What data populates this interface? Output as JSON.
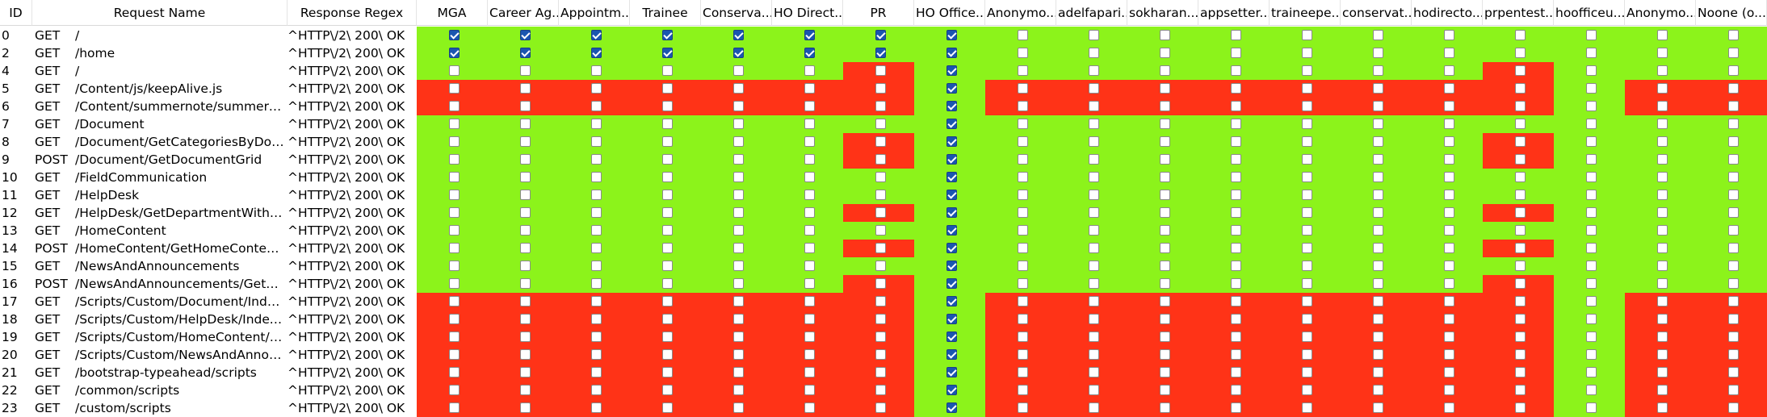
{
  "columns": {
    "id": "ID",
    "request_name": "Request Name",
    "response_regex": "Response Regex",
    "roles": [
      "MGA",
      "Career Ag...",
      "Appointm...",
      "Trainee",
      "Conserva...",
      "HO Direct...",
      "PR",
      "HO Office...",
      "Anonymo...",
      "adelfapari...",
      "sokharan...",
      "appsetter...",
      "traineepe...",
      "conservat...",
      "hodirecto...",
      "prpentest...",
      "hoofficeu...",
      "Anonymo...",
      "Noone (o..."
    ]
  },
  "colors": {
    "allowed": "#8cf31b",
    "denied": "#ff3317",
    "checkbox_checked": "#1a56b0"
  },
  "rows": [
    {
      "id": "0",
      "method": "GET",
      "url": "/",
      "regex": "^HTTP\\/2\\ 200\\ OK",
      "checked": [
        1,
        1,
        1,
        1,
        1,
        1,
        1,
        1,
        0,
        0,
        0,
        0,
        0,
        0,
        0,
        0,
        0,
        0,
        0
      ],
      "cells": "GGGGGGGGGGGGGGGGGGG"
    },
    {
      "id": "2",
      "method": "GET",
      "url": "/home",
      "regex": "^HTTP\\/2\\ 200\\ OK",
      "checked": [
        1,
        1,
        1,
        1,
        1,
        1,
        1,
        1,
        0,
        0,
        0,
        0,
        0,
        0,
        0,
        0,
        0,
        0,
        0
      ],
      "cells": "GGGGGGGGGGGGGGGGGGG"
    },
    {
      "id": "4",
      "method": "GET",
      "url": "/",
      "regex": "^HTTP\\/2\\ 200\\ OK",
      "checked": [
        0,
        0,
        0,
        0,
        0,
        0,
        0,
        1,
        0,
        0,
        0,
        0,
        0,
        0,
        0,
        0,
        0,
        0,
        0
      ],
      "cells": "GGGGGGRGGGGGGGGRGGG"
    },
    {
      "id": "5",
      "method": "GET",
      "url": "/Content/js/keepAlive.js",
      "regex": "^HTTP\\/2\\ 200\\ OK",
      "checked": [
        0,
        0,
        0,
        0,
        0,
        0,
        0,
        1,
        0,
        0,
        0,
        0,
        0,
        0,
        0,
        0,
        0,
        0,
        0
      ],
      "cells": "RRRRRRRGRRRRRRRRGRR"
    },
    {
      "id": "6",
      "method": "GET",
      "url": "/Content/summernote/summernote.css",
      "regex": "^HTTP\\/2\\ 200\\ OK",
      "checked": [
        0,
        0,
        0,
        0,
        0,
        0,
        0,
        1,
        0,
        0,
        0,
        0,
        0,
        0,
        0,
        0,
        0,
        0,
        0
      ],
      "cells": "RRRRRRRGRRRRRRRRGRR"
    },
    {
      "id": "7",
      "method": "GET",
      "url": "/Document",
      "regex": "^HTTP\\/2\\ 200\\ OK",
      "checked": [
        0,
        0,
        0,
        0,
        0,
        0,
        0,
        1,
        0,
        0,
        0,
        0,
        0,
        0,
        0,
        0,
        0,
        0,
        0
      ],
      "cells": "GGGGGGGGGGGGGGGGGGG"
    },
    {
      "id": "8",
      "method": "GET",
      "url": "/Document/GetCategoriesByDocumentType",
      "regex": "^HTTP\\/2\\ 200\\ OK",
      "checked": [
        0,
        0,
        0,
        0,
        0,
        0,
        0,
        1,
        0,
        0,
        0,
        0,
        0,
        0,
        0,
        0,
        0,
        0,
        0
      ],
      "cells": "GGGGGGRGGGGGGGGRGGG"
    },
    {
      "id": "9",
      "method": "POST",
      "url": " /Document/GetDocumentGrid",
      "regex": "^HTTP\\/2\\ 200\\ OK",
      "checked": [
        0,
        0,
        0,
        0,
        0,
        0,
        0,
        1,
        0,
        0,
        0,
        0,
        0,
        0,
        0,
        0,
        0,
        0,
        0
      ],
      "cells": "GGGGGGRGGGGGGGGRGGG"
    },
    {
      "id": "10",
      "method": "GET",
      "url": "/FieldCommunication",
      "regex": "^HTTP\\/2\\ 200\\ OK",
      "checked": [
        0,
        0,
        0,
        0,
        0,
        0,
        0,
        1,
        0,
        0,
        0,
        0,
        0,
        0,
        0,
        0,
        0,
        0,
        0
      ],
      "cells": "GGGGGGGGGGGGGGGGGGG"
    },
    {
      "id": "11",
      "method": "GET",
      "url": "/HelpDesk",
      "regex": "^HTTP\\/2\\ 200\\ OK",
      "checked": [
        0,
        0,
        0,
        0,
        0,
        0,
        0,
        1,
        0,
        0,
        0,
        0,
        0,
        0,
        0,
        0,
        0,
        0,
        0
      ],
      "cells": "GGGGGGGGGGGGGGGGGGG"
    },
    {
      "id": "12",
      "method": "GET",
      "url": "/HelpDesk/GetDepartmentWithPersonnel",
      "regex": "^HTTP\\/2\\ 200\\ OK",
      "checked": [
        0,
        0,
        0,
        0,
        0,
        0,
        0,
        1,
        0,
        0,
        0,
        0,
        0,
        0,
        0,
        0,
        0,
        0,
        0
      ],
      "cells": "GGGGGGRGGGGGGGGRGGG"
    },
    {
      "id": "13",
      "method": "GET",
      "url": "/HomeContent",
      "regex": "^HTTP\\/2\\ 200\\ OK",
      "checked": [
        0,
        0,
        0,
        0,
        0,
        0,
        0,
        1,
        0,
        0,
        0,
        0,
        0,
        0,
        0,
        0,
        0,
        0,
        0
      ],
      "cells": "GGGGGGGGGGGGGGGGGGG"
    },
    {
      "id": "14",
      "method": "POST",
      "url": " /HomeContent/GetHomeContentGrid",
      "regex": "^HTTP\\/2\\ 200\\ OK",
      "checked": [
        0,
        0,
        0,
        0,
        0,
        0,
        0,
        1,
        0,
        0,
        0,
        0,
        0,
        0,
        0,
        0,
        0,
        0,
        0
      ],
      "cells": "GGGGGGRGGGGGGGGRGGG"
    },
    {
      "id": "15",
      "method": "GET",
      "url": "/NewsAndAnnouncements",
      "regex": "^HTTP\\/2\\ 200\\ OK",
      "checked": [
        0,
        0,
        0,
        0,
        0,
        0,
        0,
        1,
        0,
        0,
        0,
        0,
        0,
        0,
        0,
        0,
        0,
        0,
        0
      ],
      "cells": "GGGGGGGGGGGGGGGGGGG"
    },
    {
      "id": "16",
      "method": "POST",
      "url": " /NewsAndAnnouncements/GetNewsGrid",
      "regex": "^HTTP\\/2\\ 200\\ OK",
      "checked": [
        0,
        0,
        0,
        0,
        0,
        0,
        0,
        1,
        0,
        0,
        0,
        0,
        0,
        0,
        0,
        0,
        0,
        0,
        0
      ],
      "cells": "GGGGGGRGGGGGGGGRGGG"
    },
    {
      "id": "17",
      "method": "GET",
      "url": "/Scripts/Custom/Document/Index.js",
      "regex": "^HTTP\\/2\\ 200\\ OK",
      "checked": [
        0,
        0,
        0,
        0,
        0,
        0,
        0,
        1,
        0,
        0,
        0,
        0,
        0,
        0,
        0,
        0,
        0,
        0,
        0
      ],
      "cells": "RRRRRRRGRRRRRRRRGRR"
    },
    {
      "id": "18",
      "method": "GET",
      "url": "/Scripts/Custom/HelpDesk/Index.js",
      "regex": "^HTTP\\/2\\ 200\\ OK",
      "checked": [
        0,
        0,
        0,
        0,
        0,
        0,
        0,
        1,
        0,
        0,
        0,
        0,
        0,
        0,
        0,
        0,
        0,
        0,
        0
      ],
      "cells": "RRRRRRRGRRRRRRRRGRR"
    },
    {
      "id": "19",
      "method": "GET",
      "url": "/Scripts/Custom/HomeContent/Index.js",
      "regex": "^HTTP\\/2\\ 200\\ OK",
      "checked": [
        0,
        0,
        0,
        0,
        0,
        0,
        0,
        1,
        0,
        0,
        0,
        0,
        0,
        0,
        0,
        0,
        0,
        0,
        0
      ],
      "cells": "RRRRRRRGRRRRRRRRGRR"
    },
    {
      "id": "20",
      "method": "GET",
      "url": "/Scripts/Custom/NewsAndAnnouncements/Index.js",
      "regex": "^HTTP\\/2\\ 200\\ OK",
      "checked": [
        0,
        0,
        0,
        0,
        0,
        0,
        0,
        1,
        0,
        0,
        0,
        0,
        0,
        0,
        0,
        0,
        0,
        0,
        0
      ],
      "cells": "RRRRRRRGRRRRRRRRGRR"
    },
    {
      "id": "21",
      "method": "GET",
      "url": "/bootstrap-typeahead/scripts",
      "regex": "^HTTP\\/2\\ 200\\ OK",
      "checked": [
        0,
        0,
        0,
        0,
        0,
        0,
        0,
        1,
        0,
        0,
        0,
        0,
        0,
        0,
        0,
        0,
        0,
        0,
        0
      ],
      "cells": "RRRRRRRGRRRRRRRRGRR"
    },
    {
      "id": "22",
      "method": "GET",
      "url": "/common/scripts",
      "regex": "^HTTP\\/2\\ 200\\ OK",
      "checked": [
        0,
        0,
        0,
        0,
        0,
        0,
        0,
        1,
        0,
        0,
        0,
        0,
        0,
        0,
        0,
        0,
        0,
        0,
        0
      ],
      "cells": "RRRRRRRGRRRRRRRRGRR"
    },
    {
      "id": "23",
      "method": "GET",
      "url": "/custom/scripts",
      "regex": "^HTTP\\/2\\ 200\\ OK",
      "checked": [
        0,
        0,
        0,
        0,
        0,
        0,
        0,
        1,
        0,
        0,
        0,
        0,
        0,
        0,
        0,
        0,
        0,
        0,
        0
      ],
      "cells": "RRRRRRRGRRRRRRRRGRR"
    }
  ]
}
